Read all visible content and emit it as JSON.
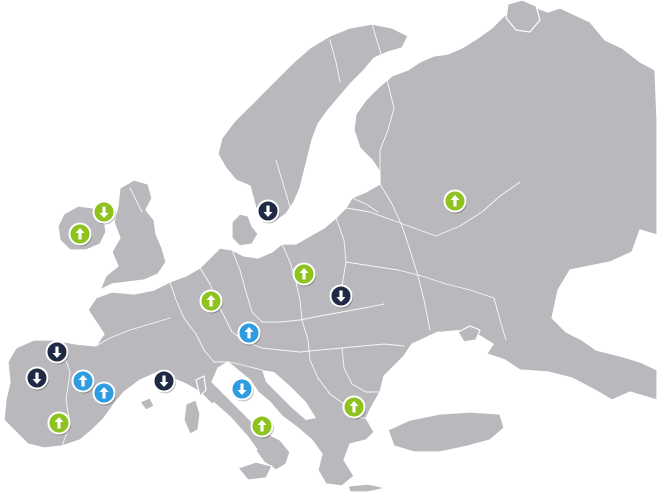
{
  "map": {
    "colors": {
      "land": "#b9b9bd",
      "borders": "#ffffff",
      "marker_green": "#8dc21f",
      "marker_blue": "#2f9be0",
      "marker_navy": "#1f2a44"
    },
    "markers": [
      {
        "region": "ireland",
        "direction": "down",
        "color": "green",
        "icon": "arrow-down-icon"
      },
      {
        "region": "ireland",
        "direction": "up",
        "color": "green",
        "icon": "arrow-up-icon"
      },
      {
        "region": "sweden-south",
        "direction": "down",
        "color": "navy",
        "icon": "arrow-down-icon"
      },
      {
        "region": "russia",
        "direction": "up",
        "color": "green",
        "icon": "arrow-up-icon"
      },
      {
        "region": "germany-east",
        "direction": "up",
        "color": "green",
        "icon": "arrow-up-icon"
      },
      {
        "region": "poland",
        "direction": "down",
        "color": "navy",
        "icon": "arrow-down-icon"
      },
      {
        "region": "germany-south-west",
        "direction": "up",
        "color": "green",
        "icon": "arrow-up-icon"
      },
      {
        "region": "austria",
        "direction": "up",
        "color": "blue",
        "icon": "arrow-up-icon"
      },
      {
        "region": "spain-north-west",
        "direction": "down",
        "color": "navy",
        "icon": "arrow-down-icon"
      },
      {
        "region": "portugal-north",
        "direction": "down",
        "color": "navy",
        "icon": "arrow-down-icon"
      },
      {
        "region": "spain-north",
        "direction": "up",
        "color": "blue",
        "icon": "arrow-up-icon"
      },
      {
        "region": "spain-north-east",
        "direction": "up",
        "color": "blue",
        "icon": "arrow-up-icon"
      },
      {
        "region": "france-south",
        "direction": "down",
        "color": "navy",
        "icon": "arrow-down-icon"
      },
      {
        "region": "italy-central",
        "direction": "down",
        "color": "blue",
        "icon": "arrow-down-icon"
      },
      {
        "region": "spain-central",
        "direction": "up",
        "color": "green",
        "icon": "arrow-up-icon"
      },
      {
        "region": "italy-south",
        "direction": "up",
        "color": "green",
        "icon": "arrow-up-icon"
      },
      {
        "region": "bulgaria",
        "direction": "up",
        "color": "green",
        "icon": "arrow-up-icon"
      }
    ]
  }
}
